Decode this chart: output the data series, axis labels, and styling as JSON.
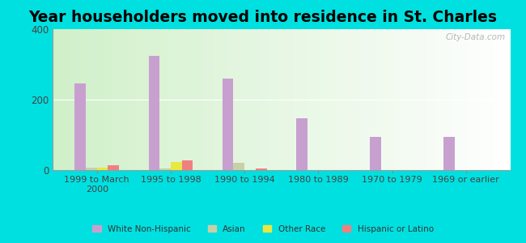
{
  "title": "Year householders moved into residence in St. Charles",
  "categories": [
    "1999 to March\n2000",
    "1995 to 1998",
    "1990 to 1994",
    "1980 to 1989",
    "1970 to 1979",
    "1969 or earlier"
  ],
  "series": {
    "White Non-Hispanic": [
      245,
      325,
      260,
      148,
      95,
      95
    ],
    "Asian": [
      6,
      5,
      20,
      0,
      0,
      0
    ],
    "Other Race": [
      8,
      22,
      0,
      0,
      0,
      0
    ],
    "Hispanic or Latino": [
      14,
      28,
      5,
      0,
      0,
      0
    ]
  },
  "colors": {
    "White Non-Hispanic": "#c8a0d0",
    "Asian": "#c8d0a8",
    "Other Race": "#e8e840",
    "Hispanic or Latino": "#f08080"
  },
  "bar_width": 0.15,
  "ylim": [
    0,
    400
  ],
  "yticks": [
    0,
    200,
    400
  ],
  "background_outer": "#00e0e0",
  "watermark": "City-Data.com",
  "title_fontsize": 13.5
}
